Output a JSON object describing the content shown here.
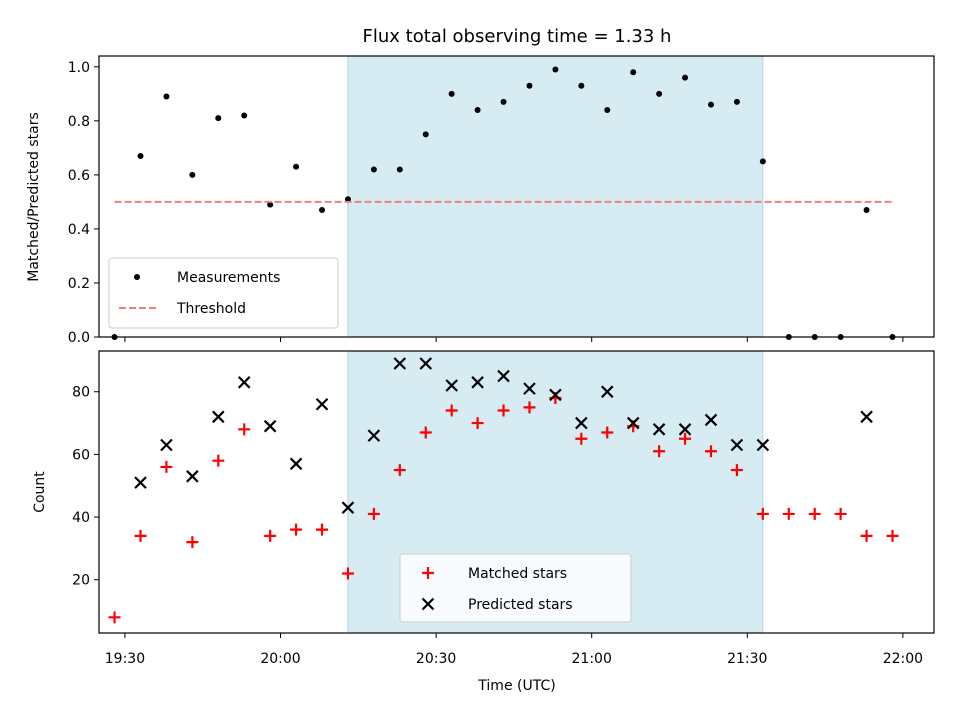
{
  "chart_data": [
    {
      "type": "scatter",
      "title": "Flux total observing time = 1.33 h",
      "xlabel": "",
      "ylabel": "Matched/Predicted stars",
      "xlim": [
        "19:25",
        "22:06"
      ],
      "ylim": [
        0,
        1.04
      ],
      "yticks": [
        "0.0",
        "0.2",
        "0.4",
        "0.6",
        "0.8",
        "1.0"
      ],
      "shaded_interval": [
        "20:13",
        "21:33"
      ],
      "legend_position": "lower-left",
      "series": [
        {
          "name": "Measurements",
          "color": "#000000",
          "marker": "dot",
          "points": [
            {
              "x": "19:28",
              "y": 0.0
            },
            {
              "x": "19:33",
              "y": 0.67
            },
            {
              "x": "19:38",
              "y": 0.89
            },
            {
              "x": "19:43",
              "y": 0.6
            },
            {
              "x": "19:48",
              "y": 0.81
            },
            {
              "x": "19:53",
              "y": 0.82
            },
            {
              "x": "19:58",
              "y": 0.49
            },
            {
              "x": "20:03",
              "y": 0.63
            },
            {
              "x": "20:08",
              "y": 0.47
            },
            {
              "x": "20:13",
              "y": 0.51
            },
            {
              "x": "20:18",
              "y": 0.62
            },
            {
              "x": "20:23",
              "y": 0.62
            },
            {
              "x": "20:28",
              "y": 0.75
            },
            {
              "x": "20:33",
              "y": 0.9
            },
            {
              "x": "20:38",
              "y": 0.84
            },
            {
              "x": "20:43",
              "y": 0.87
            },
            {
              "x": "20:48",
              "y": 0.93
            },
            {
              "x": "20:53",
              "y": 0.99
            },
            {
              "x": "20:58",
              "y": 0.93
            },
            {
              "x": "21:03",
              "y": 0.84
            },
            {
              "x": "21:08",
              "y": 0.98
            },
            {
              "x": "21:13",
              "y": 0.9
            },
            {
              "x": "21:18",
              "y": 0.96
            },
            {
              "x": "21:23",
              "y": 0.86
            },
            {
              "x": "21:28",
              "y": 0.87
            },
            {
              "x": "21:33",
              "y": 0.65
            },
            {
              "x": "21:38",
              "y": 0.0
            },
            {
              "x": "21:43",
              "y": 0.0
            },
            {
              "x": "21:48",
              "y": 0.0
            },
            {
              "x": "21:53",
              "y": 0.47
            },
            {
              "x": "21:58",
              "y": 0.0
            }
          ]
        },
        {
          "name": "Threshold",
          "color": "#f08080",
          "style": "dashed",
          "points": [
            {
              "x": "19:28",
              "y": 0.5
            },
            {
              "x": "21:58",
              "y": 0.5
            }
          ]
        }
      ]
    },
    {
      "type": "scatter",
      "title": "",
      "xlabel": "Time (UTC)",
      "ylabel": "Count",
      "xlim": [
        "19:25",
        "22:06"
      ],
      "ylim": [
        3,
        93
      ],
      "yticks": [
        "20",
        "40",
        "60",
        "80"
      ],
      "xticks": [
        "19:30",
        "20:00",
        "20:30",
        "21:00",
        "21:30",
        "22:00"
      ],
      "shaded_interval": [
        "20:13",
        "21:33"
      ],
      "legend_position": "lower-center",
      "series": [
        {
          "name": "Matched stars",
          "color": "#ff0000",
          "marker": "plus",
          "points": [
            {
              "x": "19:28",
              "y": 8
            },
            {
              "x": "19:33",
              "y": 34
            },
            {
              "x": "19:38",
              "y": 56
            },
            {
              "x": "19:43",
              "y": 32
            },
            {
              "x": "19:48",
              "y": 58
            },
            {
              "x": "19:53",
              "y": 68
            },
            {
              "x": "19:58",
              "y": 34
            },
            {
              "x": "20:03",
              "y": 36
            },
            {
              "x": "20:08",
              "y": 36
            },
            {
              "x": "20:13",
              "y": 22
            },
            {
              "x": "20:18",
              "y": 41
            },
            {
              "x": "20:23",
              "y": 55
            },
            {
              "x": "20:28",
              "y": 67
            },
            {
              "x": "20:33",
              "y": 74
            },
            {
              "x": "20:38",
              "y": 70
            },
            {
              "x": "20:43",
              "y": 74
            },
            {
              "x": "20:48",
              "y": 75
            },
            {
              "x": "20:53",
              "y": 78
            },
            {
              "x": "20:58",
              "y": 65
            },
            {
              "x": "21:03",
              "y": 67
            },
            {
              "x": "21:08",
              "y": 69
            },
            {
              "x": "21:13",
              "y": 61
            },
            {
              "x": "21:18",
              "y": 65
            },
            {
              "x": "21:23",
              "y": 61
            },
            {
              "x": "21:28",
              "y": 55
            },
            {
              "x": "21:33",
              "y": 41
            },
            {
              "x": "21:38",
              "y": 41
            },
            {
              "x": "21:43",
              "y": 41
            },
            {
              "x": "21:48",
              "y": 41
            },
            {
              "x": "21:53",
              "y": 34
            },
            {
              "x": "21:58",
              "y": 34
            }
          ]
        },
        {
          "name": "Predicted stars",
          "color": "#000000",
          "marker": "x",
          "points": [
            {
              "x": "19:33",
              "y": 51
            },
            {
              "x": "19:38",
              "y": 63
            },
            {
              "x": "19:43",
              "y": 53
            },
            {
              "x": "19:48",
              "y": 72
            },
            {
              "x": "19:53",
              "y": 83
            },
            {
              "x": "19:58",
              "y": 69
            },
            {
              "x": "20:03",
              "y": 57
            },
            {
              "x": "20:08",
              "y": 76
            },
            {
              "x": "20:13",
              "y": 43
            },
            {
              "x": "20:18",
              "y": 66
            },
            {
              "x": "20:23",
              "y": 89
            },
            {
              "x": "20:28",
              "y": 89
            },
            {
              "x": "20:33",
              "y": 82
            },
            {
              "x": "20:38",
              "y": 83
            },
            {
              "x": "20:43",
              "y": 85
            },
            {
              "x": "20:48",
              "y": 81
            },
            {
              "x": "20:53",
              "y": 79
            },
            {
              "x": "20:58",
              "y": 70
            },
            {
              "x": "21:03",
              "y": 80
            },
            {
              "x": "21:08",
              "y": 70
            },
            {
              "x": "21:13",
              "y": 68
            },
            {
              "x": "21:18",
              "y": 68
            },
            {
              "x": "21:23",
              "y": 71
            },
            {
              "x": "21:28",
              "y": 63
            },
            {
              "x": "21:33",
              "y": 63
            },
            {
              "x": "21:53",
              "y": 72
            }
          ]
        }
      ]
    }
  ],
  "colors": {
    "shade": "#add8e6",
    "threshold": "#f08080",
    "matched": "#ff0000",
    "predicted": "#000000"
  }
}
